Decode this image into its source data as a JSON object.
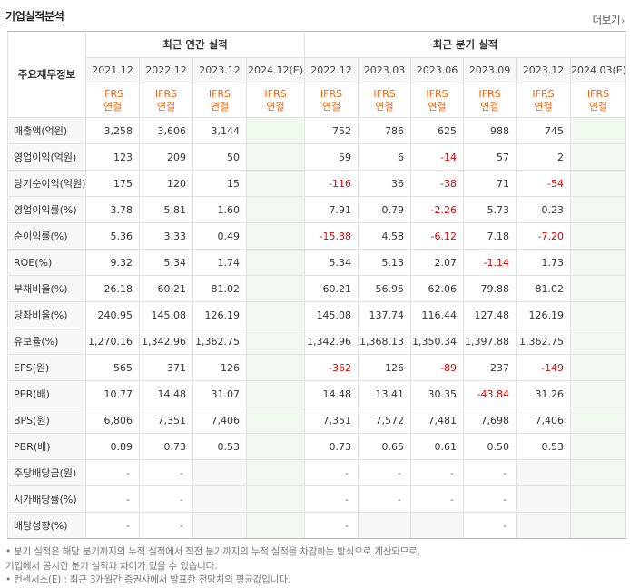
{
  "header": {
    "title": "기업실적분석",
    "more_label": "더보기",
    "more_arrow": "›"
  },
  "table": {
    "label_header": "주요재무정보",
    "annual_group": "최근 연간 실적",
    "quarter_group": "최근 분기 실적",
    "annual_periods": [
      "2021.12",
      "2022.12",
      "2023.12",
      "2024.12(E)"
    ],
    "quarter_periods": [
      "2022.12",
      "2023.03",
      "2023.06",
      "2023.09",
      "2023.12",
      "2024.03(E)"
    ],
    "ifrs_line1": "IFRS",
    "ifrs_line2": "연결",
    "rows": [
      {
        "label": "매출액(억원)",
        "annual": [
          "3,258",
          "3,606",
          "3,144",
          ""
        ],
        "quarter": [
          "752",
          "786",
          "625",
          "988",
          "745",
          ""
        ]
      },
      {
        "label": "영업이익(억원)",
        "annual": [
          "123",
          "209",
          "50",
          ""
        ],
        "quarter": [
          "59",
          "6",
          "-14",
          "57",
          "2",
          ""
        ]
      },
      {
        "label": "당기순이익(억원)",
        "annual": [
          "175",
          "120",
          "15",
          ""
        ],
        "quarter": [
          "-116",
          "36",
          "-38",
          "71",
          "-54",
          ""
        ]
      },
      {
        "label": "영업이익률(%)",
        "annual": [
          "3.78",
          "5.81",
          "1.60",
          ""
        ],
        "quarter": [
          "7.91",
          "0.79",
          "-2.26",
          "5.73",
          "0.23",
          ""
        ]
      },
      {
        "label": "순이익률(%)",
        "annual": [
          "5.36",
          "3.33",
          "0.49",
          ""
        ],
        "quarter": [
          "-15.38",
          "4.58",
          "-6.12",
          "7.18",
          "-7.20",
          ""
        ]
      },
      {
        "label": "ROE(%)",
        "annual": [
          "9.32",
          "5.34",
          "1.74",
          ""
        ],
        "quarter": [
          "5.34",
          "5.13",
          "2.07",
          "-1.14",
          "1.73",
          ""
        ]
      },
      {
        "label": "부채비율(%)",
        "annual": [
          "26.18",
          "60.21",
          "81.02",
          ""
        ],
        "quarter": [
          "60.21",
          "56.95",
          "62.06",
          "79.88",
          "81.02",
          ""
        ]
      },
      {
        "label": "당좌비율(%)",
        "annual": [
          "240.95",
          "145.08",
          "126.19",
          ""
        ],
        "quarter": [
          "145.08",
          "137.74",
          "116.44",
          "127.48",
          "126.19",
          ""
        ]
      },
      {
        "label": "유보율(%)",
        "annual": [
          "1,270.16",
          "1,342.96",
          "1,362.75",
          ""
        ],
        "quarter": [
          "1,342.96",
          "1,368.13",
          "1,350.34",
          "1,397.88",
          "1,362.75",
          ""
        ]
      },
      {
        "label": "EPS(원)",
        "annual": [
          "565",
          "371",
          "126",
          ""
        ],
        "quarter": [
          "-362",
          "126",
          "-89",
          "237",
          "-149",
          ""
        ]
      },
      {
        "label": "PER(배)",
        "annual": [
          "10.77",
          "14.48",
          "31.07",
          ""
        ],
        "quarter": [
          "14.48",
          "13.41",
          "30.35",
          "-43.84",
          "31.26",
          ""
        ]
      },
      {
        "label": "BPS(원)",
        "annual": [
          "6,806",
          "7,351",
          "7,406",
          ""
        ],
        "quarter": [
          "7,351",
          "7,572",
          "7,481",
          "7,698",
          "7,406",
          ""
        ]
      },
      {
        "label": "PBR(배)",
        "annual": [
          "0.89",
          "0.73",
          "0.53",
          ""
        ],
        "quarter": [
          "0.73",
          "0.65",
          "0.61",
          "0.50",
          "0.53",
          ""
        ]
      },
      {
        "label": "주당배당금(원)",
        "annual": [
          "-",
          "-",
          "",
          ""
        ],
        "quarter": [
          "-",
          "-",
          "-",
          "-",
          "",
          ""
        ]
      },
      {
        "label": "시가배당률(%)",
        "annual": [
          "-",
          "-",
          "",
          ""
        ],
        "quarter": [
          "-",
          "-",
          "-",
          "-",
          "",
          ""
        ]
      },
      {
        "label": "배당성향(%)",
        "annual": [
          "-",
          "-",
          "",
          ""
        ],
        "quarter": [
          "-",
          "",
          "",
          "-",
          "",
          ""
        ]
      }
    ]
  },
  "notes": [
    "• 분기 실적은 해당 분기까지의 누적 실적에서 직전 분기까지의 누적 실적을 차감하는 방식으로 계산되므로,",
    "   기업에서 공시한 분기 실적과 차이가 있을 수 있습니다.",
    "• 컨센서스(E) : 최근 3개월간 증권사에서 발표한 전망치의 평균값입니다."
  ],
  "colors": {
    "ifrs": "#ff6200",
    "negative": "#e60000",
    "estimate_bg": "#f1f8ef",
    "label_bg": "#f7f7f7"
  }
}
